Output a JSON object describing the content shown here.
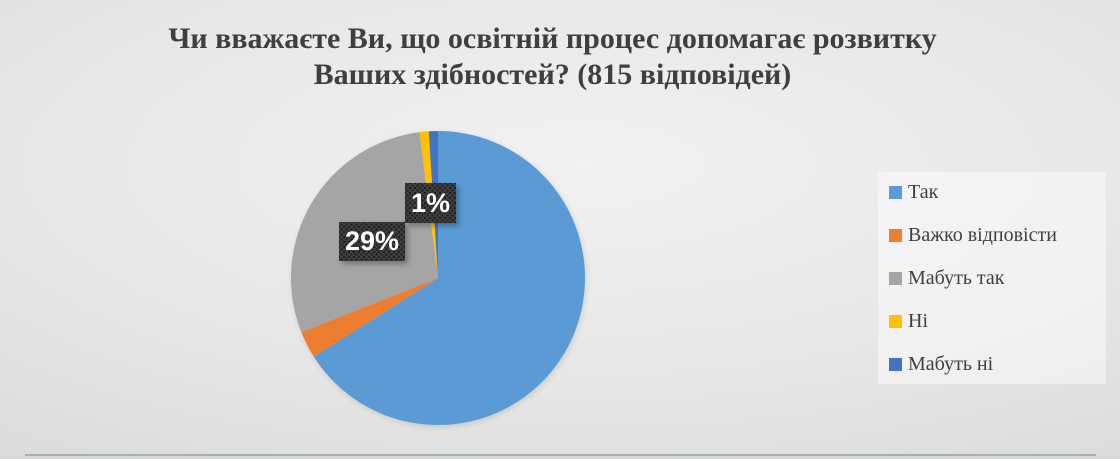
{
  "chart_data": {
    "type": "pie",
    "title": "Чи вважаєте Ви, що освітній процес допомагає розвитку Ваших здібностей? (815 відповідей)",
    "title_lines": [
      "Чи вважаєте Ви, що освітній процес допомагає розвитку",
      "Ваших здібностей? (815 відповідей)"
    ],
    "categories": [
      "Так",
      "Важко відповісти",
      "Мабуть так",
      "Ні",
      "Мабуть ні"
    ],
    "values": [
      66,
      3,
      29,
      1,
      1
    ],
    "colors": [
      "#5B9BD5",
      "#ED7D31",
      "#A5A5A5",
      "#FFC000",
      "#4472C4"
    ],
    "data_labels": [
      {
        "slice": "Мабуть так",
        "text": "29%"
      },
      {
        "slice": "Ні",
        "text": "1%"
      }
    ],
    "legend_position": "right",
    "start_angle_deg": 0,
    "direction": "clockwise",
    "styles": {
      "title_color": "#3f3f3f",
      "legend_text_color": "#404040",
      "label_box_color": "#3e3e3e",
      "label_text_color": "#ffffff",
      "background_center": "#f1f1f1",
      "background_edge": "#c8caca"
    }
  }
}
